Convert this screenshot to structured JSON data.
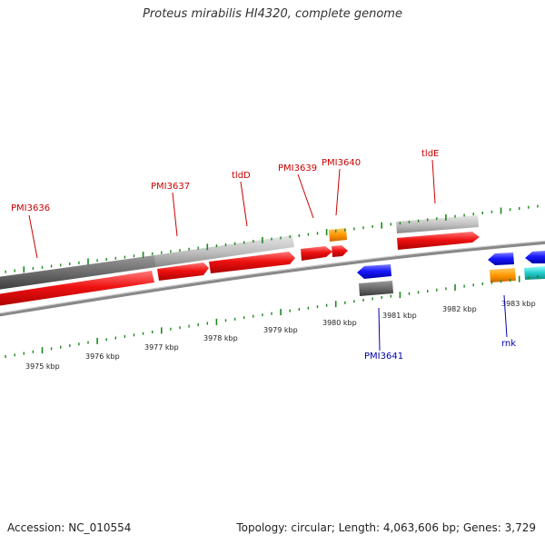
{
  "title": "Proteus mirabilis HI4320, complete genome",
  "accession_label": "Accession: NC_010554",
  "summary_label": "Topology: circular; Length: 4,063,606 bp; Genes: 3,729",
  "ruler_labels": [
    "3975 kbp",
    "3976 kbp",
    "3977 kbp",
    "3978 kbp",
    "3979 kbp",
    "3980 kbp",
    "3981 kbp",
    "3982 kbp",
    "3983 kbp"
  ],
  "top_gene_labels": [
    "PMI3636",
    "PMI3637",
    "tldD",
    "PMI3639",
    "PMI3640",
    "tldE"
  ],
  "bottom_gene_labels": [
    "PMI3641",
    "rnk"
  ],
  "colors": {
    "forward_cds": "#e41a1c",
    "reverse_cds": "#1a1aff",
    "forward_gene": "#bbbbbb",
    "forward_gene_dark": "#666666",
    "reverse_gene": "#555555",
    "orange_feature": "#ff9900",
    "cyan_feature": "#22cccc",
    "forward_label": "#cc0000",
    "reverse_label": "#0000aa",
    "tick_color": "#1a8a1a",
    "backbone": "#888888"
  }
}
